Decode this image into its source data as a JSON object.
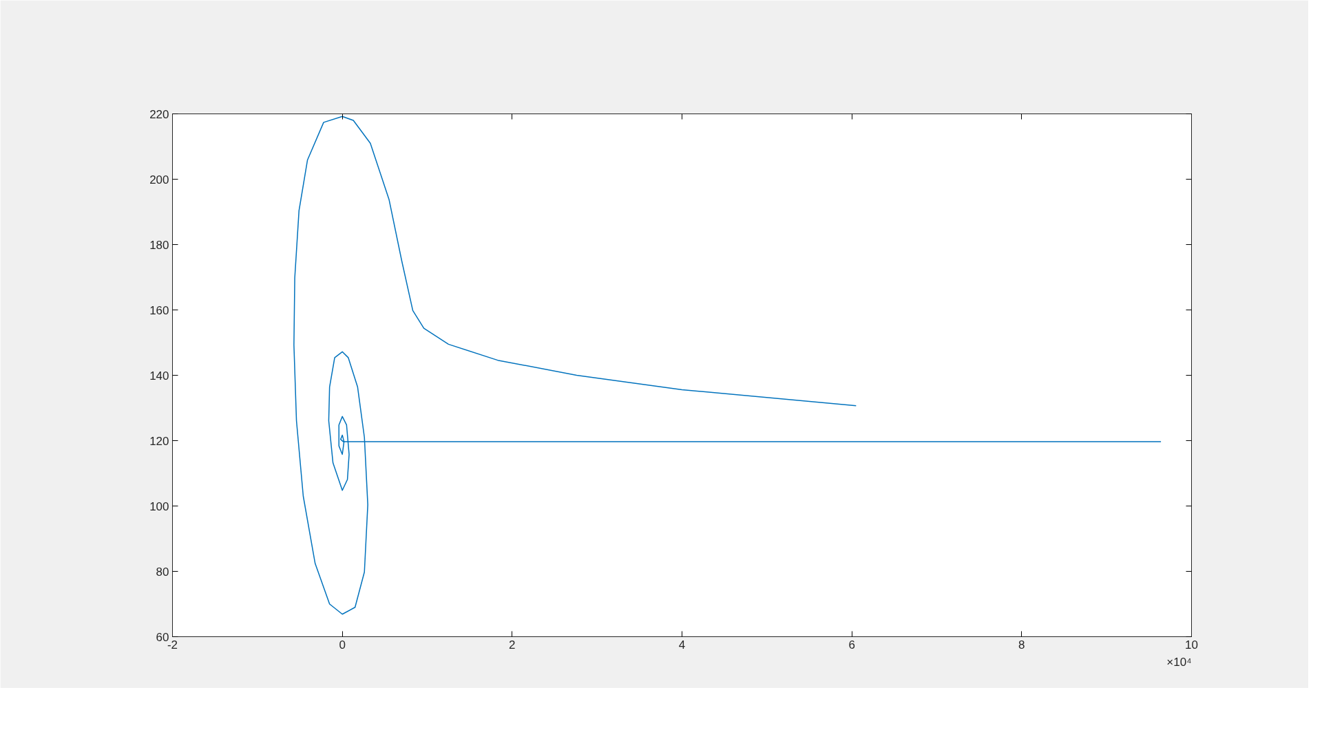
{
  "chart_data": {
    "type": "line",
    "x": [
      6.05,
      4.0,
      2.76,
      1.83,
      1.25,
      0.96,
      0.83,
      0.7,
      0.55,
      0.33,
      0.13,
      0,
      -0.22,
      -0.41,
      -0.51,
      -0.56,
      -0.57,
      -0.54,
      -0.46,
      -0.32,
      -0.15,
      0,
      0.15,
      0.26,
      0.3,
      0.26,
      0.18,
      0.07,
      0,
      -0.09,
      -0.15,
      -0.16,
      -0.11,
      0,
      0.06,
      0.08,
      0.05,
      0,
      -0.04,
      -0.04,
      0,
      0.02,
      0,
      -0.02,
      0.01,
      9.64
    ],
    "series": [
      {
        "color": "#0072bd",
        "values": [
          130.7,
          135.6,
          140,
          144.6,
          149.5,
          154.4,
          159.8,
          175,
          193.8,
          211,
          218,
          219.2,
          217.4,
          205.9,
          190.4,
          169.8,
          149.3,
          126.1,
          103,
          82.4,
          70,
          66.9,
          69,
          79.8,
          100.4,
          121,
          136.4,
          145.4,
          147.2,
          145.4,
          136.4,
          126.1,
          113.2,
          104.8,
          108.1,
          115.8,
          124.8,
          127.4,
          124.8,
          118.4,
          115.8,
          119.7,
          121.7,
          120.4,
          119.7,
          119.7
        ]
      }
    ],
    "xlim": [
      -2,
      10
    ],
    "ylim": [
      60,
      220
    ],
    "xticks": [
      -2,
      0,
      2,
      4,
      6,
      8,
      10
    ],
    "yticks": [
      60,
      80,
      100,
      120,
      140,
      160,
      180,
      200,
      220
    ],
    "annotations": [
      "×10⁴"
    ],
    "grid": false,
    "marker": "none",
    "line_style": "solid"
  }
}
